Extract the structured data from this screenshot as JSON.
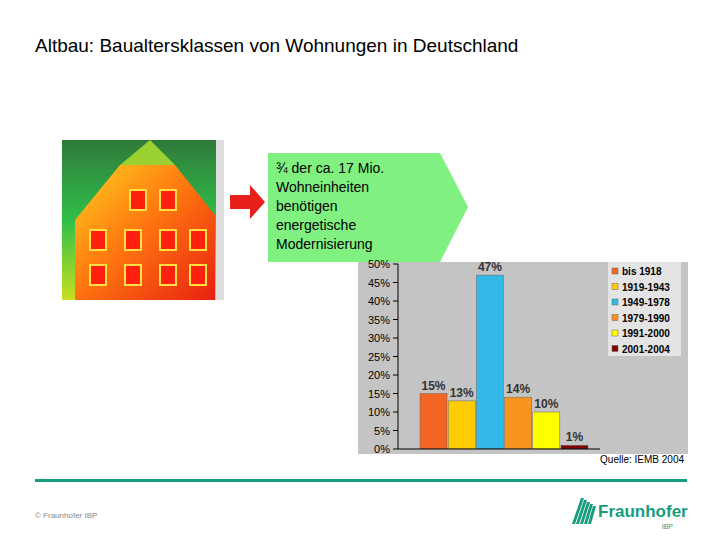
{
  "title": "Altbau: Baualtersklassen von Wohnungen in Deutschland",
  "callout": {
    "lines": [
      "¾ der ca. 17 Mio.",
      "Wohneinheiten",
      "benötigen",
      "energetische",
      "Modernisierung"
    ]
  },
  "chart_data": {
    "type": "bar",
    "categories": [
      "bis 1918",
      "1919-1943",
      "1949-1978",
      "1979-1990",
      "1991-2000",
      "2001-2004"
    ],
    "values": [
      15,
      13,
      47,
      14,
      10,
      1
    ],
    "value_labels": [
      "15%",
      "13%",
      "47%",
      "14%",
      "10%",
      "1%"
    ],
    "colors": [
      "#f26522",
      "#ffcc00",
      "#33b9e8",
      "#f7941d",
      "#ffff00",
      "#800000"
    ],
    "ylim": [
      0,
      50
    ],
    "yticks": [
      {
        "value": 0,
        "label": "0%"
      },
      {
        "value": 5,
        "label": "5%"
      },
      {
        "value": 10,
        "label": "10%"
      },
      {
        "value": 15,
        "label": "15%"
      },
      {
        "value": 20,
        "label": "20%"
      },
      {
        "value": 25,
        "label": "25%"
      },
      {
        "value": 30,
        "label": "30%"
      },
      {
        "value": 35,
        "label": "35%"
      },
      {
        "value": 40,
        "label": "40%"
      },
      {
        "value": 45,
        "label": "45%"
      },
      {
        "value": 50,
        "label": "50%"
      }
    ],
    "grid": false,
    "legend": "right",
    "data_labels": true,
    "tick_labels": "y"
  },
  "source": "Quelle: IEMB 2004",
  "footer": "© Fraunhofer IBP",
  "logo": {
    "name": "Fraunhofer",
    "unit": "IBP"
  }
}
